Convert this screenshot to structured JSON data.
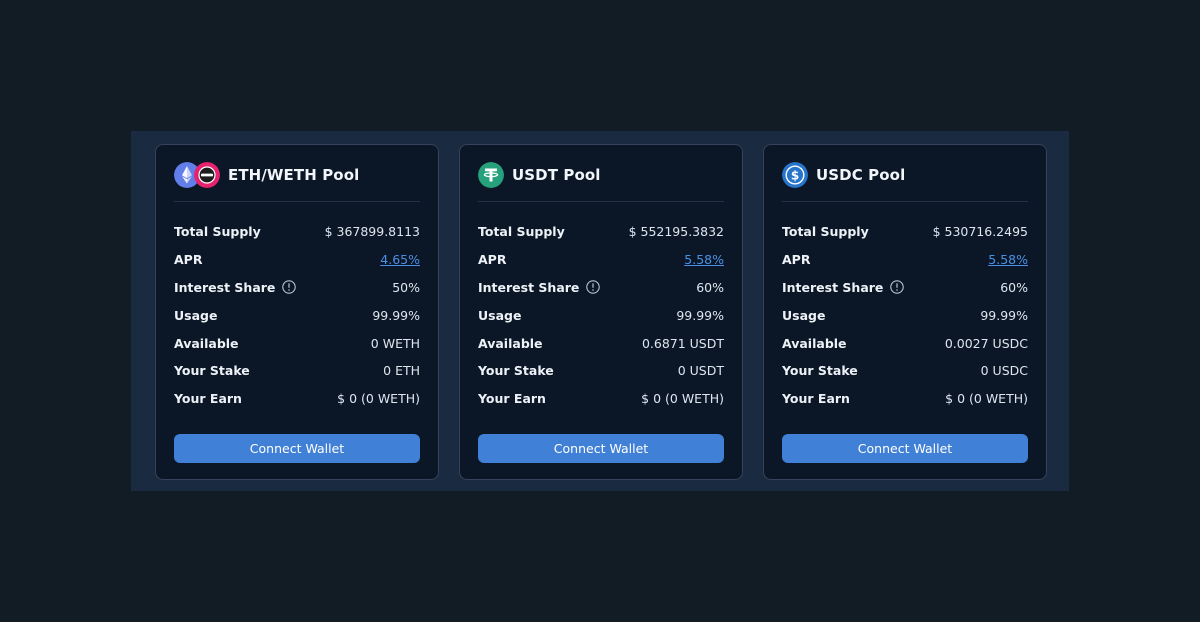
{
  "pools": [
    {
      "title": "ETH/WETH Pool",
      "icons": [
        "eth-icon",
        "weth-icon"
      ],
      "total_supply_label": "Total Supply",
      "total_supply": "$ 367899.8113",
      "apr_label": "APR",
      "apr": "4.65%",
      "interest_share_label": "Interest Share",
      "interest_share": "50%",
      "usage_label": "Usage",
      "usage": "99.99%",
      "available_label": "Available",
      "available": "0 WETH",
      "your_stake_label": "Your Stake",
      "your_stake": "0 ETH",
      "your_earn_label": "Your Earn",
      "your_earn": "$ 0 (0 WETH)",
      "button_label": "Connect Wallet"
    },
    {
      "title": "USDT Pool",
      "icons": [
        "usdt-icon"
      ],
      "total_supply_label": "Total Supply",
      "total_supply": "$ 552195.3832",
      "apr_label": "APR",
      "apr": "5.58%",
      "interest_share_label": "Interest Share",
      "interest_share": "60%",
      "usage_label": "Usage",
      "usage": "99.99%",
      "available_label": "Available",
      "available": "0.6871 USDT",
      "your_stake_label": "Your Stake",
      "your_stake": "0 USDT",
      "your_earn_label": "Your Earn",
      "your_earn": "$ 0 (0 WETH)",
      "button_label": "Connect Wallet"
    },
    {
      "title": "USDC Pool",
      "icons": [
        "usdc-icon"
      ],
      "total_supply_label": "Total Supply",
      "total_supply": "$ 530716.2495",
      "apr_label": "APR",
      "apr": "5.58%",
      "interest_share_label": "Interest Share",
      "interest_share": "60%",
      "usage_label": "Usage",
      "usage": "99.99%",
      "available_label": "Available",
      "available": "0.0027 USDC",
      "your_stake_label": "Your Stake",
      "your_stake": "0 USDC",
      "your_earn_label": "Your Earn",
      "your_earn": "$ 0 (0 WETH)",
      "button_label": "Connect Wallet"
    }
  ],
  "colors": {
    "background": "#121c24",
    "panel": "#1a2a40",
    "card": "#0b1727",
    "button": "#4080d6",
    "link": "#4c8fe6",
    "eth": "#627eea",
    "weth": "#e6226e",
    "usdt": "#26a17b",
    "usdc": "#2775ca"
  }
}
